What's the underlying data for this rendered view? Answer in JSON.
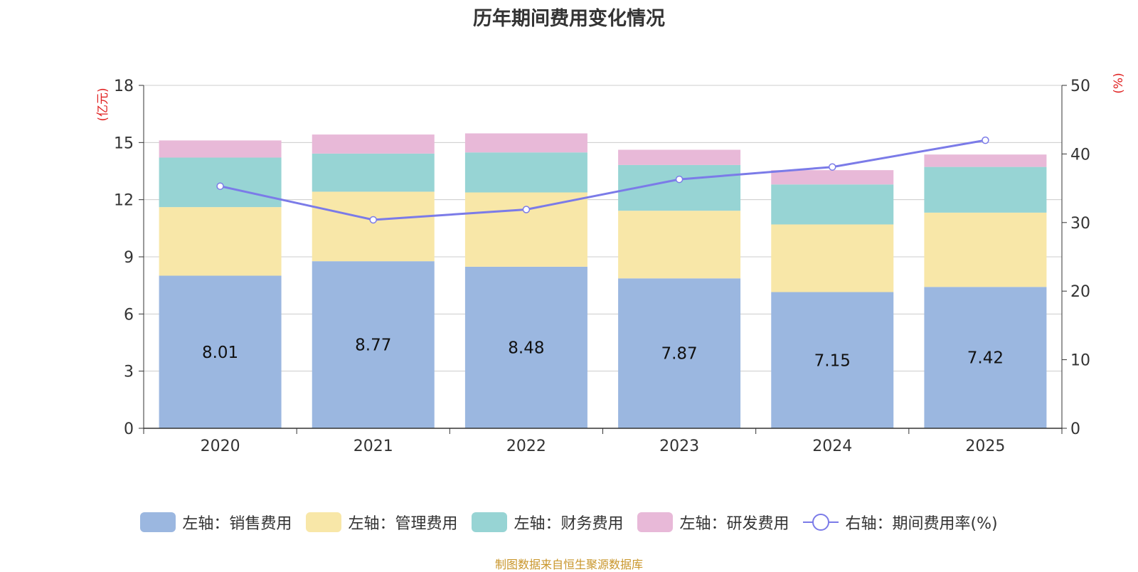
{
  "chart_data": {
    "type": "bar",
    "title": "历年期间费用变化情况",
    "categories": [
      "2020",
      "2021",
      "2022",
      "2023",
      "2024",
      "2025"
    ],
    "series": [
      {
        "name": "左轴：销售费用",
        "axis": "left",
        "kind": "bar",
        "color": "#9bb7e0",
        "values": [
          8.01,
          8.77,
          8.48,
          7.87,
          7.15,
          7.42
        ]
      },
      {
        "name": "左轴：管理费用",
        "axis": "left",
        "kind": "bar",
        "color": "#f8e7a8",
        "values": [
          3.6,
          3.65,
          3.9,
          3.55,
          3.55,
          3.9
        ]
      },
      {
        "name": "左轴：财务费用",
        "axis": "left",
        "kind": "bar",
        "color": "#97d4d4",
        "values": [
          2.6,
          2.0,
          2.1,
          2.4,
          2.1,
          2.4
        ]
      },
      {
        "name": "左轴：研发费用",
        "axis": "left",
        "kind": "bar",
        "color": "#e8b9d8",
        "values": [
          0.9,
          1.0,
          1.0,
          0.8,
          0.75,
          0.65
        ]
      },
      {
        "name": "右轴：期间费用率(%)",
        "axis": "right",
        "kind": "line",
        "color": "#7b7be8",
        "values": [
          35.3,
          30.4,
          31.9,
          36.3,
          38.1,
          42.0
        ]
      }
    ],
    "data_labels": [
      "8.01",
      "8.77",
      "8.48",
      "7.87",
      "7.15",
      "7.42"
    ],
    "y_left": {
      "label": "(亿元)",
      "ticks": [
        0,
        3,
        6,
        9,
        12,
        15,
        18
      ],
      "lim": [
        0,
        18
      ]
    },
    "y_right": {
      "label": "(%)",
      "ticks": [
        0,
        10,
        20,
        30,
        40,
        50
      ],
      "lim": [
        0,
        50
      ]
    },
    "grid": true,
    "legend_position": "bottom"
  },
  "legend": [
    {
      "label": "左轴：销售费用",
      "color": "#9bb7e0",
      "kind": "bar"
    },
    {
      "label": "左轴：管理费用",
      "color": "#f8e7a8",
      "kind": "bar"
    },
    {
      "label": "左轴：财务费用",
      "color": "#97d4d4",
      "kind": "bar"
    },
    {
      "label": "左轴：研发费用",
      "color": "#e8b9d8",
      "kind": "bar"
    },
    {
      "label": "右轴：期间费用率(%)",
      "color": "#7b7be8",
      "kind": "line"
    }
  ],
  "source": "制图数据来自恒生聚源数据库"
}
